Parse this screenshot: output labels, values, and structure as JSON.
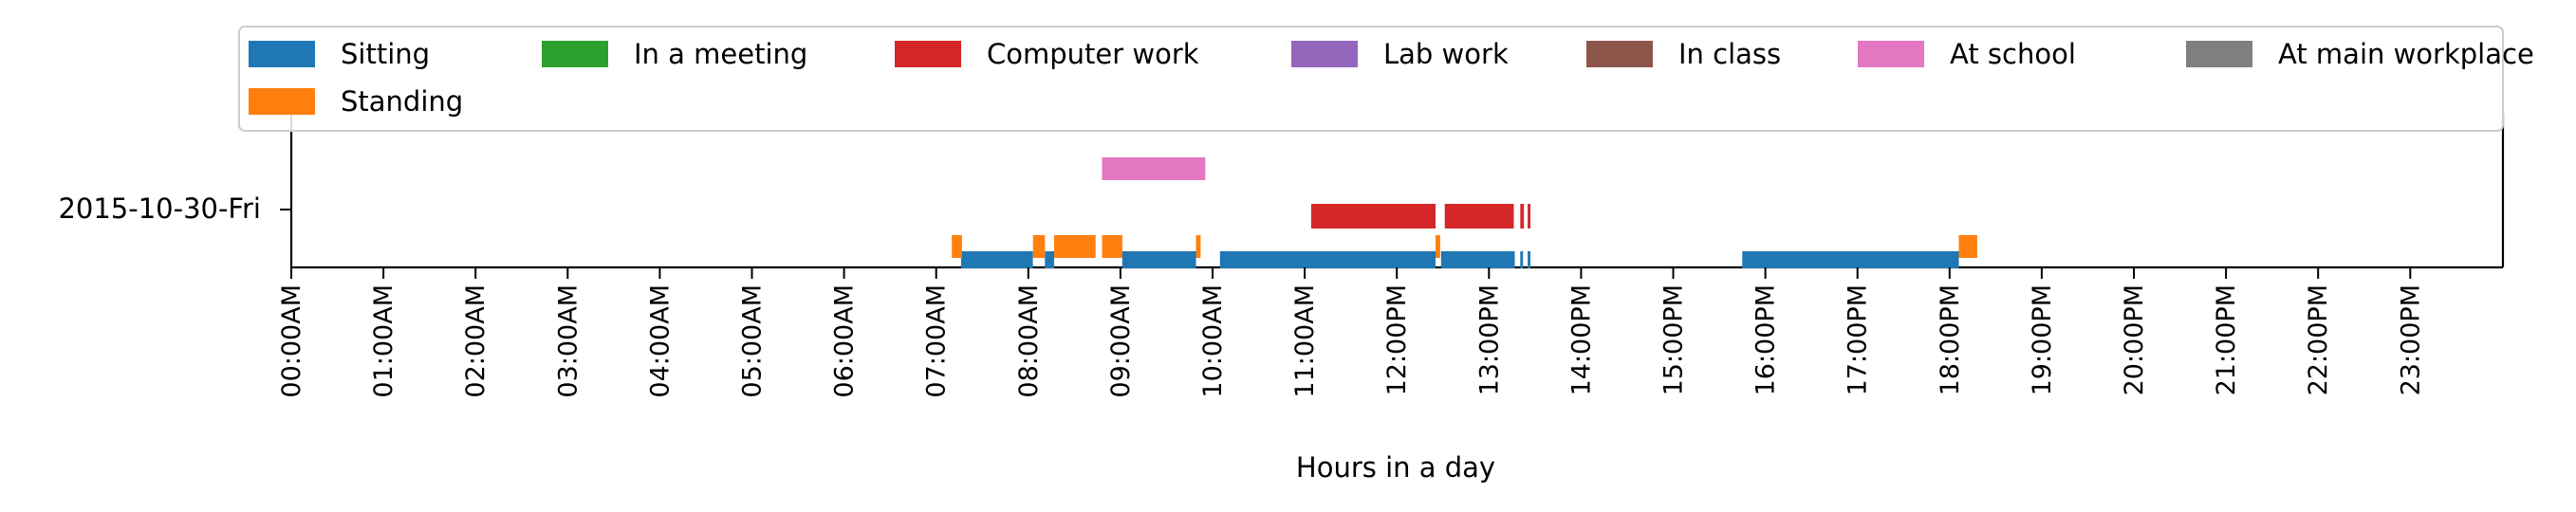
{
  "chart_data": {
    "type": "timeline",
    "title": "",
    "xlabel": "Hours in a day",
    "ylabel": "",
    "xlim": [
      0,
      24
    ],
    "row_label": "2015-10-30-Fri",
    "x_ticks": [
      "00:00AM",
      "01:00AM",
      "02:00AM",
      "03:00AM",
      "04:00AM",
      "05:00AM",
      "06:00AM",
      "07:00AM",
      "08:00AM",
      "09:00AM",
      "10:00AM",
      "11:00AM",
      "12:00PM",
      "13:00PM",
      "14:00PM",
      "15:00PM",
      "16:00PM",
      "17:00PM",
      "18:00PM",
      "19:00PM",
      "20:00PM",
      "21:00PM",
      "22:00PM",
      "23:00PM"
    ],
    "legend_position": "top",
    "series": [
      {
        "name": "Sitting",
        "color": "#1f77b4",
        "intervals": [
          [
            7.27,
            8.05
          ],
          [
            8.18,
            8.28
          ],
          [
            9.02,
            9.82
          ],
          [
            10.08,
            12.42
          ],
          [
            12.48,
            13.28
          ],
          [
            13.34,
            13.37
          ],
          [
            13.42,
            13.45
          ],
          [
            15.75,
            18.1
          ]
        ]
      },
      {
        "name": "Standing",
        "color": "#ff7f0e",
        "intervals": [
          [
            7.17,
            7.28
          ],
          [
            8.05,
            8.18
          ],
          [
            8.28,
            8.73
          ],
          [
            8.8,
            9.02
          ],
          [
            9.82,
            9.87
          ],
          [
            12.42,
            12.47
          ],
          [
            18.1,
            18.3
          ]
        ]
      },
      {
        "name": "In a meeting",
        "color": "#2ca02c",
        "intervals": []
      },
      {
        "name": "Computer work",
        "color": "#d62728",
        "intervals": [
          [
            11.07,
            12.42
          ],
          [
            12.52,
            13.27
          ],
          [
            13.34,
            13.38
          ],
          [
            13.42,
            13.45
          ]
        ]
      },
      {
        "name": "Lab work",
        "color": "#9467bd",
        "intervals": []
      },
      {
        "name": "In class",
        "color": "#8c564b",
        "intervals": []
      },
      {
        "name": "At school",
        "color": "#e377c2",
        "intervals": [
          [
            8.8,
            9.92
          ]
        ]
      },
      {
        "name": "At main workplace",
        "color": "#7f7f7f",
        "intervals": []
      }
    ]
  }
}
